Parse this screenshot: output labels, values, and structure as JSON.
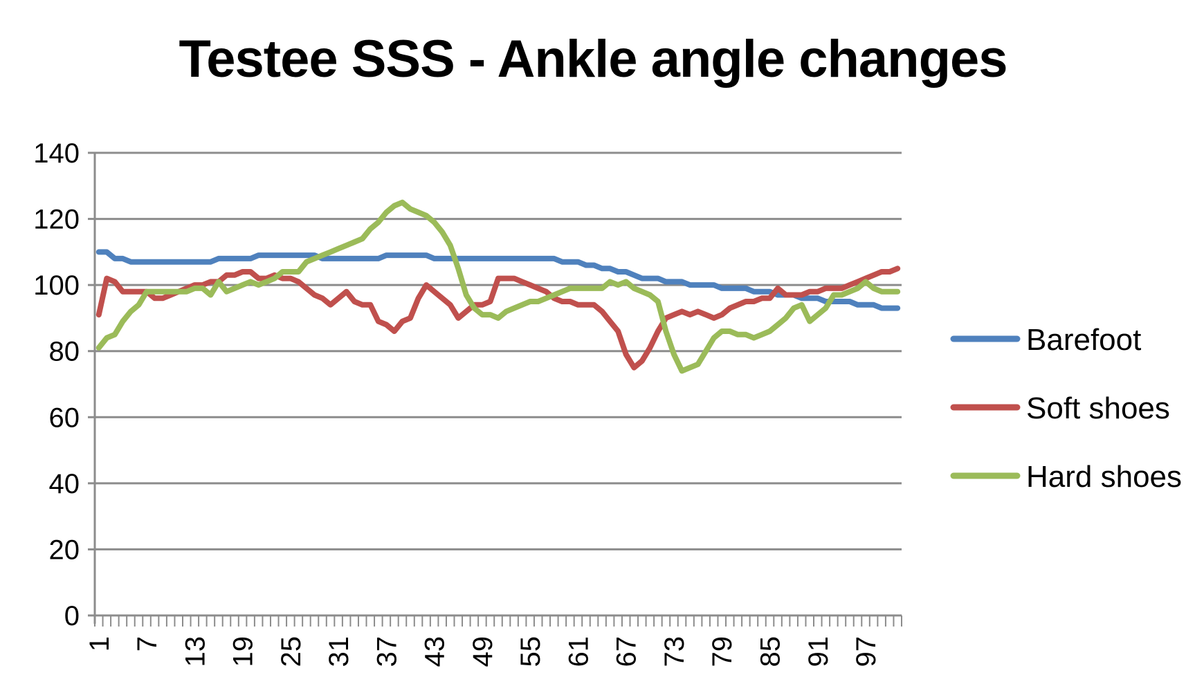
{
  "chart_data": {
    "type": "line",
    "title": "Testee  SSS - Ankle angle changes",
    "xlabel": "",
    "ylabel": "",
    "ylim": [
      0,
      140
    ],
    "yticks": [
      0,
      20,
      40,
      60,
      80,
      100,
      120,
      140
    ],
    "xtick_labels": [
      "1",
      "7",
      "13",
      "19",
      "25",
      "31",
      "37",
      "43",
      "49",
      "55",
      "61",
      "67",
      "73",
      "79",
      "85",
      "91",
      "97"
    ],
    "x": [
      1,
      2,
      3,
      4,
      5,
      6,
      7,
      8,
      9,
      10,
      11,
      12,
      13,
      14,
      15,
      16,
      17,
      18,
      19,
      20,
      21,
      22,
      23,
      24,
      25,
      26,
      27,
      28,
      29,
      30,
      31,
      32,
      33,
      34,
      35,
      36,
      37,
      38,
      39,
      40,
      41,
      42,
      43,
      44,
      45,
      46,
      47,
      48,
      49,
      50,
      51,
      52,
      53,
      54,
      55,
      56,
      57,
      58,
      59,
      60,
      61,
      62,
      63,
      64,
      65,
      66,
      67,
      68,
      69,
      70,
      71,
      72,
      73,
      74,
      75,
      76,
      77,
      78,
      79,
      80,
      81,
      82,
      83,
      84,
      85,
      86,
      87,
      88,
      89,
      90,
      91,
      92,
      93,
      94,
      95,
      96,
      97,
      98,
      99,
      100,
      101
    ],
    "grid": true,
    "legend_position": "right",
    "series": [
      {
        "name": "Barefoot",
        "color": "#4f81bd",
        "values": [
          110,
          110,
          108,
          108,
          107,
          107,
          107,
          107,
          107,
          107,
          107,
          107,
          107,
          107,
          107,
          108,
          108,
          108,
          108,
          108,
          109,
          109,
          109,
          109,
          109,
          109,
          109,
          109,
          108,
          108,
          108,
          108,
          108,
          108,
          108,
          108,
          109,
          109,
          109,
          109,
          109,
          109,
          108,
          108,
          108,
          108,
          108,
          108,
          108,
          108,
          108,
          108,
          108,
          108,
          108,
          108,
          108,
          108,
          107,
          107,
          107,
          106,
          106,
          105,
          105,
          104,
          104,
          103,
          102,
          102,
          102,
          101,
          101,
          101,
          100,
          100,
          100,
          100,
          99,
          99,
          99,
          99,
          98,
          98,
          98,
          97,
          97,
          97,
          96,
          96,
          96,
          95,
          95,
          95,
          95,
          94,
          94,
          94,
          93,
          93,
          93
        ]
      },
      {
        "name": "Soft shoes",
        "color": "#c0504d",
        "values": [
          91,
          102,
          101,
          98,
          98,
          98,
          98,
          96,
          96,
          97,
          98,
          99,
          100,
          100,
          101,
          101,
          103,
          103,
          104,
          104,
          102,
          102,
          103,
          102,
          102,
          101,
          99,
          97,
          96,
          94,
          96,
          98,
          95,
          94,
          94,
          89,
          88,
          86,
          89,
          90,
          96,
          100,
          98,
          96,
          94,
          90,
          92,
          94,
          94,
          95,
          102,
          102,
          102,
          101,
          100,
          99,
          98,
          96,
          95,
          95,
          94,
          94,
          94,
          92,
          89,
          86,
          79,
          75,
          77,
          81,
          86,
          90,
          91,
          92,
          91,
          92,
          91,
          90,
          91,
          93,
          94,
          95,
          95,
          96,
          96,
          99,
          97,
          97,
          97,
          98,
          98,
          99,
          99,
          99,
          100,
          101,
          102,
          103,
          104,
          104,
          105
        ]
      },
      {
        "name": "Hard shoes",
        "color": "#9bbb59",
        "values": [
          81,
          84,
          85,
          89,
          92,
          94,
          98,
          98,
          98,
          98,
          98,
          98,
          99,
          99,
          97,
          101,
          98,
          99,
          100,
          101,
          100,
          101,
          102,
          104,
          104,
          104,
          107,
          108,
          109,
          110,
          111,
          112,
          113,
          114,
          117,
          119,
          122,
          124,
          125,
          123,
          122,
          121,
          119,
          116,
          112,
          105,
          97,
          93,
          91,
          91,
          90,
          92,
          93,
          94,
          95,
          95,
          96,
          97,
          98,
          99,
          99,
          99,
          99,
          99,
          101,
          100,
          101,
          99,
          98,
          97,
          95,
          86,
          79,
          74,
          75,
          76,
          80,
          84,
          86,
          86,
          85,
          85,
          84,
          85,
          86,
          88,
          90,
          93,
          94,
          89,
          91,
          93,
          97,
          97,
          98,
          99,
          101,
          99,
          98,
          98,
          98
        ]
      }
    ]
  }
}
